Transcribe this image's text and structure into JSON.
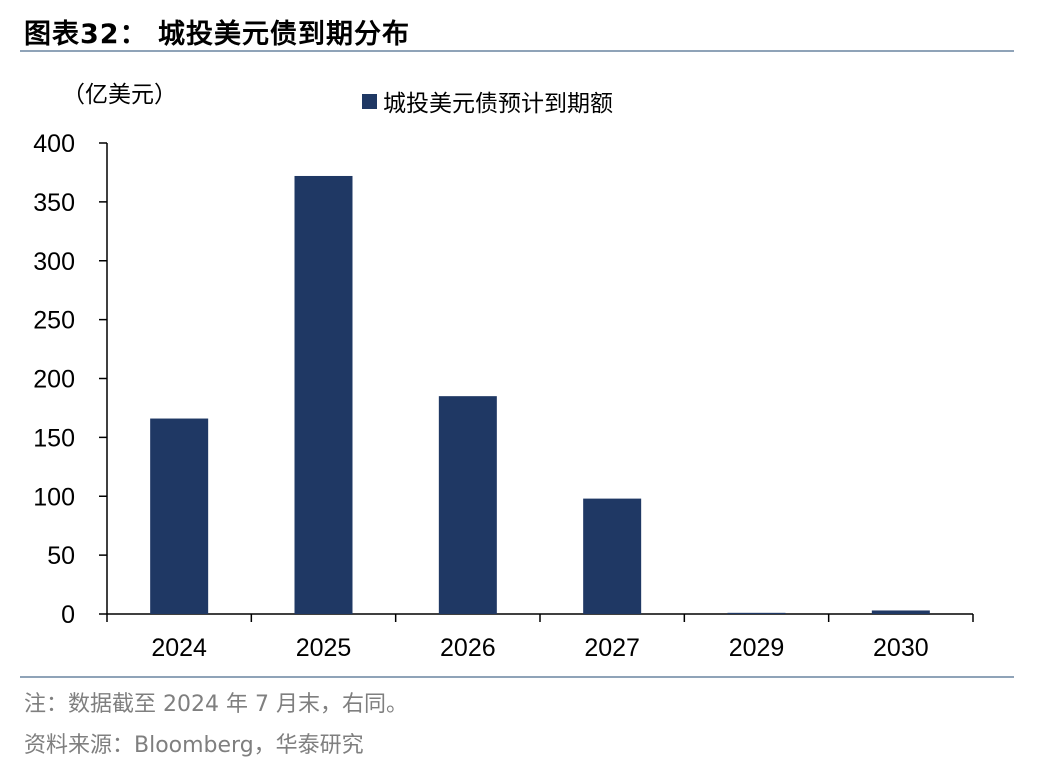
{
  "figure": {
    "title": "图表32：  城投美元债到期分布",
    "unit": "（亿美元）",
    "note": "注：数据截至 2024 年 7 月末，右同。",
    "source": "资料来源：Bloomberg，华泰研究"
  },
  "chart_data": {
    "type": "bar",
    "categories": [
      "2024",
      "2025",
      "2026",
      "2027",
      "2029",
      "2030"
    ],
    "series": [
      {
        "name": "城投美元债预计到期额",
        "values": [
          166,
          372,
          185,
          98,
          1,
          3
        ],
        "color": "#1f3864"
      }
    ],
    "yticks": [
      0,
      50,
      100,
      150,
      200,
      250,
      300,
      350,
      400
    ],
    "ylim": [
      0,
      400
    ],
    "grid": false,
    "legend": "top-center"
  }
}
